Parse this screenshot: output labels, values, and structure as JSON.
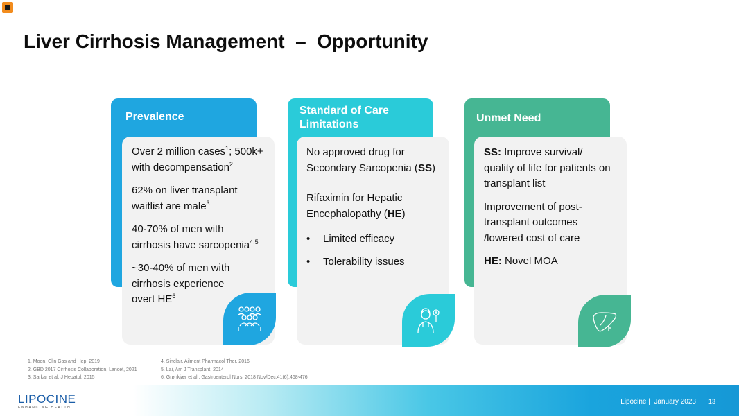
{
  "title": "Liver Cirrhosis Management  –  Opportunity",
  "colors": {
    "prevalence": "#1fa6e0",
    "standard_of_care": "#2acbd9",
    "unmet_need": "#46b693",
    "card_bg": "#f2f2f2"
  },
  "columns": {
    "prevalence": {
      "header": "Prevalence",
      "items": [
        {
          "text": "Over 2 million cases",
          "sup": "1",
          "text2": "; 500k+ with decompensation",
          "sup2": "2"
        },
        {
          "text": "62% on liver transplant waitlist are male",
          "sup": "3"
        },
        {
          "text": "40-70% of men with cirrhosis have sarcopenia",
          "sup": "4,5"
        },
        {
          "text": "~30-40% of men with cirrhosis experience overt HE",
          "sup": "6"
        }
      ],
      "icon": "people-group-icon"
    },
    "standard_of_care": {
      "header": "Standard of Care Limitations",
      "item1_text": "No approved drug for Secondary Sarcopenia (",
      "item1_bold": "SS",
      "item1_close": ")",
      "item2_text": "Rifaximin for Hepatic Encephalopathy (",
      "item2_bold": "HE",
      "item2_close": ")",
      "bullets": [
        "Limited efficacy",
        "Tolerability issues"
      ],
      "bullet_mark": "•",
      "icon": "doctor-icon"
    },
    "unmet_need": {
      "header": "Unmet Need",
      "item1_bold": "SS:",
      "item1_text": " Improve  survival/ quality of life for patients on transplant list",
      "item2_text": "Improvement of post-transplant outcomes /lowered cost of care",
      "item3_bold": "HE:",
      "item3_text": " Novel MOA",
      "icon": "liver-icon"
    }
  },
  "footnotes_left": [
    "1. Moon, Clin Gas and Hep, 2019",
    "2. GBD 2017 Cirrhosis Collaboration, Lancet, 2021",
    "3. Sarkar et al. J Hepatol. 2015"
  ],
  "footnotes_right": [
    "4. Sinclair, Ailment Pharmacol Ther, 2016",
    "5. Lai, Am J Transplant, 2014",
    "6. Grønkjær et al., Gastroenterol Nurs. 2018 Nov/Dec;41(6):468-476."
  ],
  "footer": {
    "brand": "LIPOCINE",
    "brand_tagline": "ENHANCING HEALTH",
    "company": "Lipocine |  January 2023",
    "page_number": "13"
  }
}
